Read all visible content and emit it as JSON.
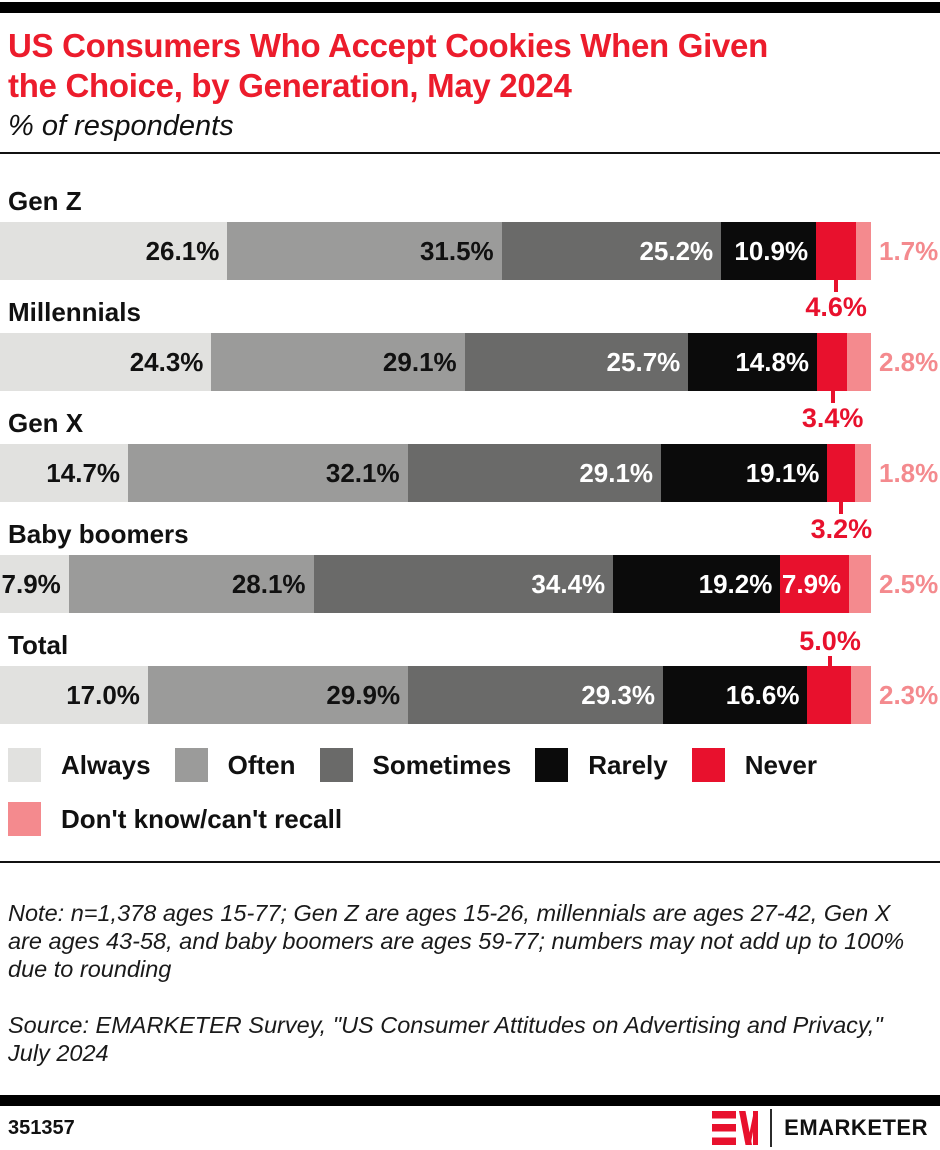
{
  "header": {
    "title": "US Consumers Who Accept Cookies When Given\nthe Choice, by Generation, May 2024",
    "subtitle": "% of respondents",
    "title_color": "#EC1C2C"
  },
  "chart_data": {
    "type": "bar",
    "stacked": true,
    "orientation": "horizontal",
    "unit": "% of respondents",
    "xlim": [
      0,
      100
    ],
    "grid": false,
    "legend_position": "bottom",
    "categories": [
      "Gen Z",
      "Millennials",
      "Gen X",
      "Baby boomers",
      "Total"
    ],
    "series": [
      {
        "key": "always",
        "name": "Always",
        "color": "#E1E1DF",
        "label_color": "dark",
        "values": [
          26.1,
          24.3,
          14.7,
          7.9,
          17.0
        ]
      },
      {
        "key": "often",
        "name": "Often",
        "color": "#9B9B9A",
        "label_color": "dark",
        "values": [
          31.5,
          29.1,
          32.1,
          28.1,
          29.9
        ]
      },
      {
        "key": "sometimes",
        "name": "Sometimes",
        "color": "#6A6A69",
        "label_color": "light",
        "values": [
          25.2,
          25.7,
          29.1,
          34.4,
          29.3
        ]
      },
      {
        "key": "rarely",
        "name": "Rarely",
        "color": "#0B0B0B",
        "label_color": "light",
        "values": [
          10.9,
          14.8,
          19.1,
          19.2,
          16.6
        ]
      },
      {
        "key": "never",
        "name": "Never",
        "color": "#E8112D",
        "label_color": "light",
        "values": [
          4.6,
          3.4,
          3.2,
          7.9,
          5.0
        ]
      },
      {
        "key": "dk",
        "name": "Don't know/can't recall",
        "color": "#F48A8E",
        "label_color": "pink",
        "values": [
          1.7,
          2.8,
          1.8,
          2.5,
          2.3
        ]
      }
    ],
    "never_label_position": [
      "below",
      "below",
      "below",
      "inside",
      "above"
    ],
    "value_format": "0.0%"
  },
  "notes": {
    "note": "Note: n=1,378 ages 15-77; Gen Z are ages 15-26, millennials are ages 27-42, Gen X\nare ages 43-58, and baby boomers are ages 59-77; numbers may not add up to 100%\ndue to rounding",
    "source": "Source: EMARKETER Survey, \"US Consumer Attitudes on Advertising and Privacy,\"\nJuly 2024"
  },
  "footer": {
    "chart_id": "351357",
    "brand": "EMARKETER"
  }
}
